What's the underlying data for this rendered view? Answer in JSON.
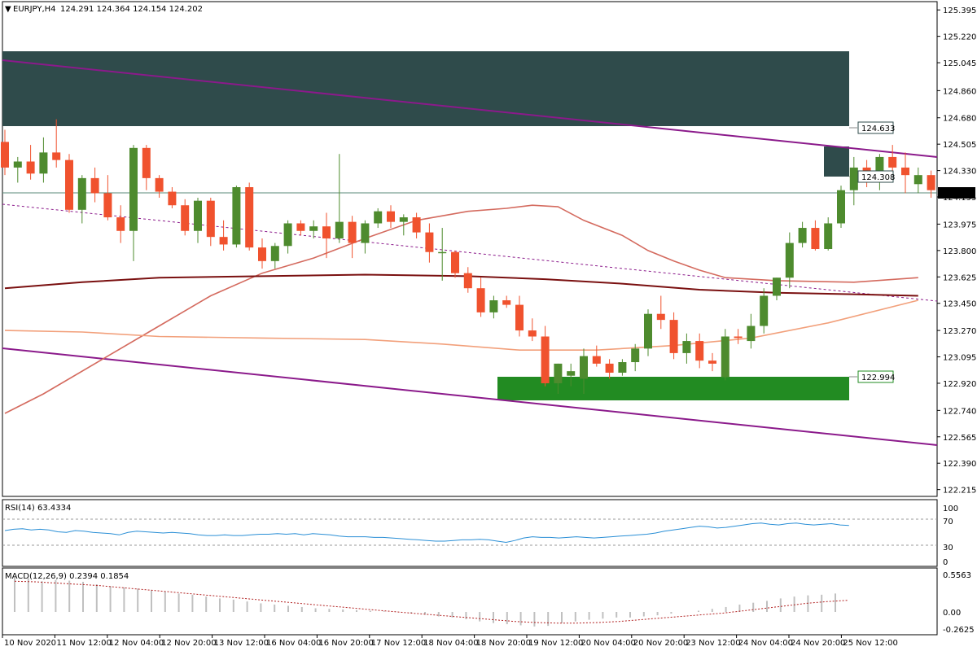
{
  "header": {
    "symbol_tf": "EURJPY,H4",
    "ohlc": "124.291 124.364 124.154 124.202"
  },
  "colors": {
    "bull": "#4e8b2e",
    "bear": "#f0522e",
    "supply_zone": "#2f4b4b",
    "demand_zone": "#228b22",
    "channel": "#8b1a8b",
    "ma_fast": "#d46a5e",
    "ma_slow": "#7a1010",
    "ma_mid": "#f2a07b",
    "rsi": "#2a8fd6",
    "macd_signal": "#b22222",
    "macd_hist": "#c0c0c0"
  },
  "price_axis": {
    "ticks": [
      "125.395",
      "125.220",
      "125.045",
      "124.860",
      "124.680",
      "124.505",
      "124.330",
      "124.155",
      "123.975",
      "123.800",
      "123.625",
      "123.450",
      "123.270",
      "123.095",
      "122.920",
      "122.740",
      "122.565",
      "122.390",
      "122.215"
    ],
    "current_price": "124.202",
    "level_labels": [
      "124.633",
      "124.308",
      "122.994"
    ]
  },
  "time_axis": {
    "ticks": [
      "10 Nov 2020",
      "11 Nov 12:00",
      "12 Nov 04:00",
      "12 Nov 20:00",
      "13 Nov 12:00",
      "16 Nov 04:00",
      "16 Nov 20:00",
      "17 Nov 12:00",
      "18 Nov 04:00",
      "18 Nov 20:00",
      "19 Nov 12:00",
      "20 Nov 04:00",
      "20 Nov 20:00",
      "23 Nov 12:00",
      "24 Nov 04:00",
      "24 Nov 20:00",
      "25 Nov 12:00"
    ]
  },
  "rsi_panel": {
    "label": "RSI(14) 63.4334",
    "ticks": [
      "100",
      "70",
      "30",
      "0"
    ]
  },
  "macd_panel": {
    "label": "MACD(12,26,9) 0.2394 0.1854",
    "ticks": [
      "0.5563",
      "0.00",
      "-0.2625"
    ]
  },
  "chart_data": {
    "type": "candlestick",
    "ylim": [
      122.17,
      125.45
    ],
    "candles": [
      [
        124.52,
        124.6,
        124.3,
        124.35
      ],
      [
        124.35,
        124.42,
        124.25,
        124.39
      ],
      [
        124.39,
        124.5,
        124.27,
        124.31
      ],
      [
        124.31,
        124.55,
        124.25,
        124.45
      ],
      [
        124.45,
        124.67,
        124.35,
        124.4
      ],
      [
        124.4,
        124.44,
        124.05,
        124.07
      ],
      [
        124.07,
        124.3,
        123.98,
        124.28
      ],
      [
        124.28,
        124.35,
        124.12,
        124.18
      ],
      [
        124.18,
        124.3,
        124.0,
        124.02
      ],
      [
        124.02,
        124.1,
        123.85,
        123.93
      ],
      [
        123.93,
        124.5,
        123.73,
        124.48
      ],
      [
        124.48,
        124.5,
        124.2,
        124.28
      ],
      [
        124.28,
        124.3,
        124.15,
        124.19
      ],
      [
        124.19,
        124.22,
        124.08,
        124.1
      ],
      [
        124.1,
        124.14,
        123.9,
        123.93
      ],
      [
        123.93,
        124.15,
        123.85,
        124.13
      ],
      [
        124.13,
        124.15,
        123.83,
        123.89
      ],
      [
        123.89,
        124.0,
        123.8,
        123.84
      ],
      [
        123.84,
        124.23,
        123.82,
        124.22
      ],
      [
        124.22,
        124.25,
        123.8,
        123.82
      ],
      [
        123.82,
        123.88,
        123.68,
        123.73
      ],
      [
        123.73,
        123.85,
        123.68,
        123.83
      ],
      [
        123.83,
        124.0,
        123.78,
        123.98
      ],
      [
        123.98,
        124.0,
        123.9,
        123.93
      ],
      [
        123.93,
        124.0,
        123.88,
        123.96
      ],
      [
        123.96,
        124.05,
        123.75,
        123.88
      ],
      [
        123.88,
        124.44,
        123.85,
        123.99
      ],
      [
        123.99,
        124.03,
        123.75,
        123.85
      ],
      [
        123.85,
        124.0,
        123.78,
        123.98
      ],
      [
        123.98,
        124.08,
        123.95,
        124.06
      ],
      [
        124.06,
        124.1,
        123.95,
        123.99
      ],
      [
        123.99,
        124.04,
        123.9,
        124.02
      ],
      [
        124.02,
        124.05,
        123.88,
        123.92
      ],
      [
        123.92,
        123.98,
        123.72,
        123.79
      ],
      [
        123.79,
        123.95,
        123.6,
        123.79
      ],
      [
        123.79,
        123.8,
        123.62,
        123.65
      ],
      [
        123.65,
        123.69,
        123.52,
        123.55
      ],
      [
        123.55,
        123.62,
        123.36,
        123.39
      ],
      [
        123.39,
        123.5,
        123.35,
        123.47
      ],
      [
        123.47,
        123.5,
        123.42,
        123.44
      ],
      [
        123.44,
        123.5,
        123.23,
        123.27
      ],
      [
        123.27,
        123.35,
        123.2,
        123.23
      ],
      [
        123.23,
        123.3,
        122.9,
        122.92
      ],
      [
        122.92,
        123.05,
        122.85,
        123.05
      ],
      [
        122.97,
        123.05,
        122.9,
        123.0
      ],
      [
        122.95,
        123.15,
        122.85,
        123.1
      ],
      [
        123.1,
        123.17,
        123.03,
        123.05
      ],
      [
        123.05,
        123.08,
        122.95,
        122.99
      ],
      [
        122.99,
        123.08,
        122.97,
        123.06
      ],
      [
        123.06,
        123.18,
        123.0,
        123.15
      ],
      [
        123.15,
        123.41,
        123.1,
        123.38
      ],
      [
        123.38,
        123.5,
        123.28,
        123.34
      ],
      [
        123.34,
        123.39,
        123.08,
        123.12
      ],
      [
        123.12,
        123.25,
        123.05,
        123.2
      ],
      [
        123.2,
        123.25,
        123.02,
        123.07
      ],
      [
        123.07,
        123.12,
        123.0,
        123.05
      ],
      [
        122.96,
        123.28,
        122.94,
        123.23
      ],
      [
        123.23,
        123.28,
        123.18,
        123.22
      ],
      [
        123.2,
        123.38,
        123.15,
        123.3
      ],
      [
        123.3,
        123.55,
        123.25,
        123.5
      ],
      [
        123.5,
        123.62,
        123.47,
        123.62
      ],
      [
        123.62,
        123.92,
        123.55,
        123.85
      ],
      [
        123.85,
        123.99,
        123.82,
        123.95
      ],
      [
        123.95,
        124.0,
        123.8,
        123.81
      ],
      [
        123.81,
        124.02,
        123.8,
        123.98
      ],
      [
        123.98,
        124.23,
        123.95,
        124.2
      ],
      [
        124.2,
        124.42,
        124.1,
        124.35
      ],
      [
        124.35,
        124.4,
        124.22,
        124.28
      ],
      [
        124.28,
        124.44,
        124.2,
        124.42
      ],
      [
        124.42,
        124.5,
        124.32,
        124.35
      ],
      [
        124.35,
        124.45,
        124.18,
        124.3
      ],
      [
        124.24,
        124.35,
        124.18,
        124.3
      ],
      [
        124.3,
        124.33,
        124.15,
        124.2
      ]
    ],
    "ma_fast": [
      [
        0,
        122.72
      ],
      [
        3,
        122.85
      ],
      [
        8,
        123.1
      ],
      [
        12,
        123.3
      ],
      [
        16,
        123.5
      ],
      [
        20,
        123.65
      ],
      [
        24,
        123.75
      ],
      [
        28,
        123.88
      ],
      [
        32,
        124.0
      ],
      [
        36,
        124.06
      ],
      [
        39,
        124.08
      ],
      [
        41,
        124.1
      ],
      [
        43,
        124.09
      ],
      [
        45,
        124.0
      ],
      [
        48,
        123.9
      ],
      [
        50,
        123.8
      ],
      [
        52,
        123.73
      ],
      [
        54,
        123.67
      ],
      [
        56,
        123.62
      ],
      [
        60,
        123.6
      ],
      [
        66,
        123.59
      ],
      [
        71,
        123.62
      ]
    ],
    "ma_slow": [
      [
        0,
        123.55
      ],
      [
        6,
        123.59
      ],
      [
        12,
        123.62
      ],
      [
        20,
        123.63
      ],
      [
        28,
        123.64
      ],
      [
        36,
        123.63
      ],
      [
        42,
        123.61
      ],
      [
        48,
        123.58
      ],
      [
        54,
        123.54
      ],
      [
        60,
        123.52
      ],
      [
        66,
        123.51
      ],
      [
        71,
        123.5
      ]
    ],
    "ma_mid": [
      [
        0,
        123.27
      ],
      [
        6,
        123.26
      ],
      [
        12,
        123.23
      ],
      [
        20,
        123.22
      ],
      [
        28,
        123.21
      ],
      [
        34,
        123.18
      ],
      [
        40,
        123.14
      ],
      [
        46,
        123.14
      ],
      [
        52,
        123.17
      ],
      [
        58,
        123.22
      ],
      [
        64,
        123.32
      ],
      [
        71,
        123.47
      ]
    ]
  }
}
